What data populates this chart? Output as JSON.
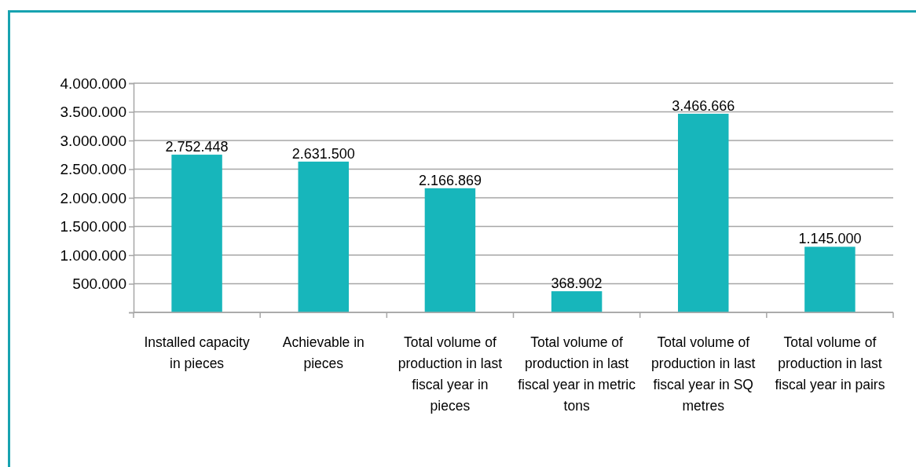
{
  "chart_data": {
    "type": "bar",
    "categories": [
      "Installed capacity in pieces",
      "Achievable in pieces",
      "Total volume of production in last fiscal year in pieces",
      "Total volume of production in last fiscal year in metric tons",
      "Total volume of production in last fiscal year in SQ metres",
      "Total volume of production in last fiscal year in pairs"
    ],
    "values": [
      2752448,
      2631500,
      2166869,
      368902,
      3466666,
      1145000
    ],
    "value_labels": [
      "2.752.448",
      "2.631.500",
      "2.166.869",
      "368.902",
      "3.466.666",
      "1.145.000"
    ],
    "color": "#17b6bb",
    "ylim": [
      0,
      4000000
    ],
    "yticks": [
      {
        "value": 0,
        "label": null
      },
      {
        "value": 500000,
        "label": "500.000"
      },
      {
        "value": 1000000,
        "label": "1.000.000"
      },
      {
        "value": 1500000,
        "label": "1.500.000"
      },
      {
        "value": 2000000,
        "label": "2.000.000"
      },
      {
        "value": 2500000,
        "label": "2.500.000"
      },
      {
        "value": 3000000,
        "label": "3.000.000"
      },
      {
        "value": 3500000,
        "label": "3.500.000"
      },
      {
        "value": 4000000,
        "label": "4.000.000"
      }
    ],
    "grid": "y"
  }
}
